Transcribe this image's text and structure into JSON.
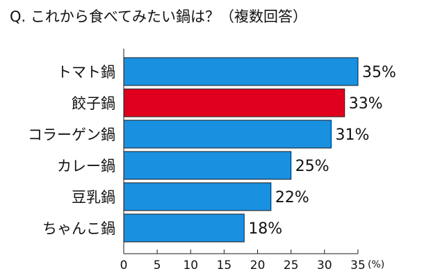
{
  "chart_data": {
    "type": "bar",
    "orientation": "horizontal",
    "title": "Q. これから食べてみたい鍋は？（複数回答）",
    "categories": [
      "トマト鍋",
      "餃子鍋",
      "コラーゲン鍋",
      "カレー鍋",
      "豆乳鍋",
      "ちゃんこ鍋"
    ],
    "values": [
      35,
      33,
      31,
      25,
      22,
      18
    ],
    "value_labels": [
      "35%",
      "33%",
      "31%",
      "25%",
      "22%",
      "18%"
    ],
    "highlight_index": 1,
    "xlim": [
      0,
      35
    ],
    "xticks": [
      0,
      5,
      10,
      15,
      20,
      25,
      30,
      35
    ],
    "xunit": "(%)",
    "grid": false,
    "legend": "none",
    "colors": {
      "bar": "#1a90e0",
      "highlight": "#e0001e",
      "stroke": "#1a1a1a"
    }
  }
}
